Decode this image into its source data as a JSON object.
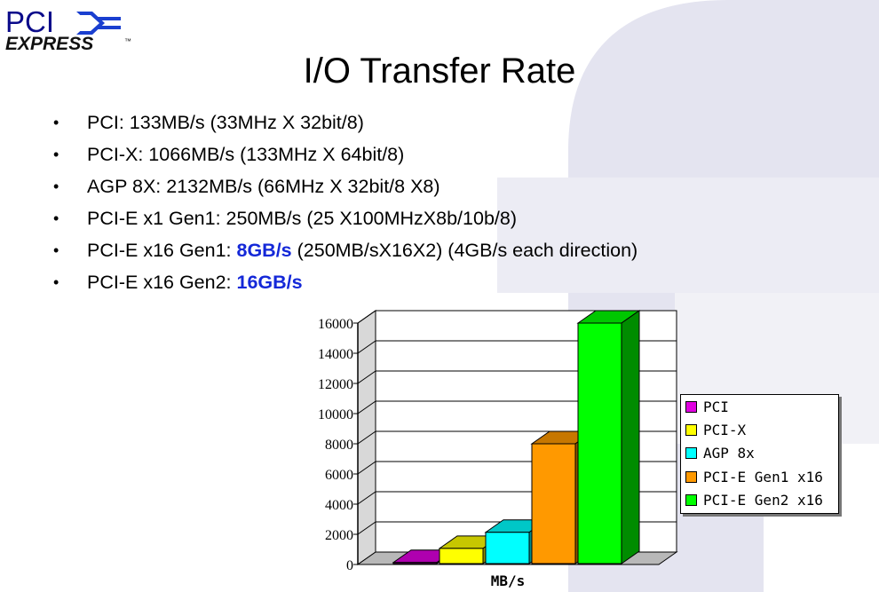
{
  "logo": {
    "line1": "PCI",
    "line2": "EXPRESS",
    "tm": "™"
  },
  "title": "I/O Transfer Rate",
  "bullets": [
    {
      "text": "PCI: 133MB/s (33MHz X 32bit/8)"
    },
    {
      "text": "PCI-X: 1066MB/s (133MHz X 64bit/8)"
    },
    {
      "text": "AGP 8X: 2132MB/s (66MHz X 32bit/8 X8)"
    },
    {
      "text": "PCI-E x1 Gen1: 250MB/s (25 X100MHzX8b/10b/8)"
    },
    {
      "pre": "PCI-E x16 Gen1: ",
      "highlight": "8GB/s",
      "post": " (250MB/sX16X2) (4GB/s each direction)"
    },
    {
      "pre": "PCI-E x16 Gen2: ",
      "highlight": "16GB/s",
      "post": ""
    }
  ],
  "colors": {
    "highlight": "#1428d8",
    "logo_blue": "#0a0a8a"
  },
  "chart_data": {
    "type": "bar",
    "style": "3d",
    "xlabel": "MB/s",
    "ylabel": "",
    "ylim": [
      0,
      16000
    ],
    "yticks": [
      "0",
      "2000",
      "4000",
      "6000",
      "8000",
      "10000",
      "12000",
      "14000",
      "16000"
    ],
    "grid": true,
    "legend_position": "right",
    "series": [
      {
        "name": "PCI",
        "value": 133,
        "color": "#e000e0"
      },
      {
        "name": "PCI-X",
        "value": 1066,
        "color": "#ffff00"
      },
      {
        "name": "AGP 8x",
        "value": 2132,
        "color": "#00ffff"
      },
      {
        "name": "PCI-E Gen1 x16",
        "value": 8000,
        "color": "#ff9900"
      },
      {
        "name": "PCI-E Gen2 x16",
        "value": 16000,
        "color": "#00ff00"
      }
    ]
  }
}
